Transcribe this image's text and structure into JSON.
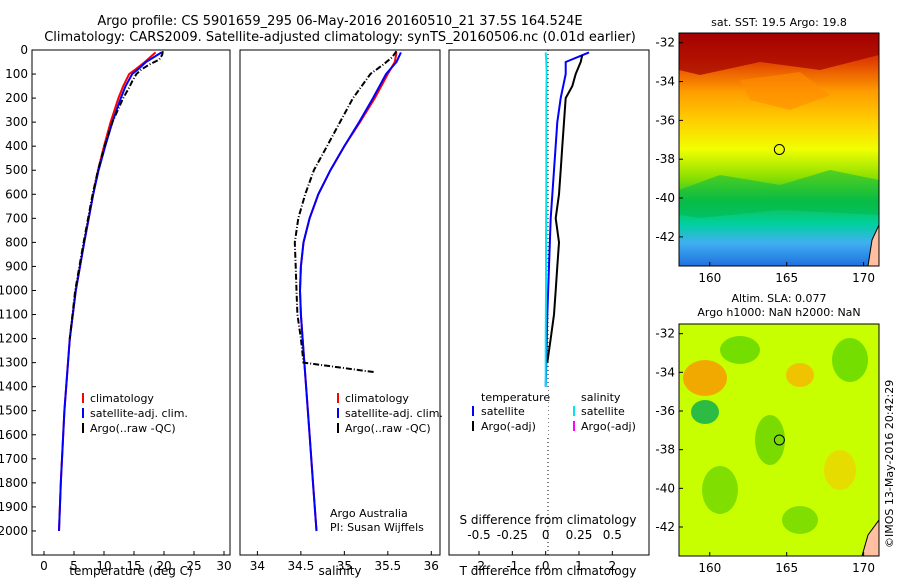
{
  "header": {
    "line1": "Argo profile: CS 5901659_295 06-May-2016 20160510_21 37.5S 164.524E",
    "line2": "Climatology: CARS2009. Satellite-adjusted climatology: synTS_20160506.nc (0.01d earlier)"
  },
  "credits": {
    "program": "Argo Australia",
    "pi": "PI: Susan Wijffels",
    "stamp": "©IMOS 13-May-2016 20:42:29"
  },
  "colors": {
    "climatology": "#ff0000",
    "satellite": "#0000ff",
    "argo": "#000000",
    "satellite_salinity": "#00e5ee",
    "argo_salinity": "#ff00ff"
  },
  "legend_profile": {
    "climatology": "climatology",
    "satellite": "satellite-adj. clim.",
    "argo": "Argo(..raw -QC)"
  },
  "legend_diff": {
    "temp_title": "temperature",
    "sal_title": "salinity",
    "temp_sat": "satellite",
    "temp_argo": "Argo(-adj)",
    "sal_sat": "satellite",
    "sal_argo": "Argo(-adj)"
  },
  "maps": {
    "sst_title": "sat. SST: 19.5 Argo: 19.8",
    "sla_title1": "Altim. SLA: 0.077",
    "sla_title2": "Argo h1000: NaN h2000: NaN",
    "y_ticks": [
      "-32",
      "-34",
      "-36",
      "-38",
      "-40",
      "-42"
    ],
    "x_ticks": [
      "160",
      "165",
      "170"
    ],
    "float_lon": 164.524,
    "float_lat": -37.5
  },
  "chart_data": [
    {
      "type": "line",
      "xlabel": "temperature (deg C)",
      "ylabel": "",
      "xlim": [
        -2,
        31
      ],
      "ylim": [
        2100,
        0
      ],
      "x_ticks": [
        0,
        5,
        10,
        15,
        20,
        25,
        30
      ],
      "y_ticks": [
        0,
        100,
        200,
        300,
        400,
        500,
        600,
        700,
        800,
        900,
        1000,
        1100,
        1200,
        1300,
        1400,
        1500,
        1600,
        1700,
        1800,
        1900,
        2000
      ],
      "series": [
        {
          "name": "climatology",
          "color": "#ff0000",
          "depth": [
            10,
            50,
            80,
            100,
            150,
            200,
            300,
            400,
            500,
            600,
            800,
            1000,
            1200,
            1500,
            1800,
            2000
          ],
          "values": [
            18.6,
            16.8,
            15.3,
            14.2,
            13.2,
            12.4,
            11.1,
            10.0,
            9.0,
            8.2,
            6.7,
            5.3,
            4.3,
            3.4,
            2.8,
            2.5
          ]
        },
        {
          "name": "satellite-adj. clim.",
          "color": "#0000ff",
          "depth": [
            10,
            50,
            80,
            100,
            150,
            200,
            300,
            400,
            500,
            600,
            800,
            1000,
            1200,
            1500,
            1800,
            2000
          ],
          "values": [
            19.6,
            17.0,
            15.7,
            14.7,
            13.6,
            12.8,
            11.4,
            10.2,
            9.1,
            8.2,
            6.7,
            5.3,
            4.3,
            3.4,
            2.8,
            2.5
          ]
        },
        {
          "name": "Argo(..raw -QC)",
          "color": "#000000",
          "depth": [
            5,
            20,
            40,
            60,
            80,
            100,
            130,
            160,
            200,
            250,
            300,
            400,
            500,
            600,
            800,
            1000,
            1200
          ],
          "values": [
            19.8,
            19.7,
            19.2,
            17.6,
            16.3,
            15.4,
            14.7,
            14.1,
            13.2,
            12.3,
            11.4,
            10.1,
            9.0,
            8.1,
            6.6,
            5.2,
            4.3
          ]
        }
      ]
    },
    {
      "type": "line",
      "xlabel": "salinity",
      "ylabel": "",
      "xlim": [
        33.8,
        36.1
      ],
      "ylim": [
        2100,
        0
      ],
      "x_ticks": [
        34,
        34.5,
        35,
        35.5,
        36
      ],
      "series": [
        {
          "name": "climatology",
          "color": "#ff0000",
          "depth": [
            10,
            50,
            100,
            200,
            300,
            400,
            500,
            600,
            700,
            800,
            900,
            1000,
            1100,
            1200,
            1400,
            1600,
            1800,
            2000
          ],
          "values": [
            35.6,
            35.58,
            35.5,
            35.35,
            35.18,
            35.0,
            34.84,
            34.7,
            34.6,
            34.53,
            34.5,
            34.49,
            34.5,
            34.52,
            34.56,
            34.6,
            34.64,
            34.68
          ]
        },
        {
          "name": "satellite-adj. clim.",
          "color": "#0000ff",
          "depth": [
            10,
            50,
            100,
            200,
            300,
            400,
            500,
            600,
            700,
            800,
            900,
            1000,
            1100,
            1200,
            1400,
            1600,
            1800,
            2000
          ],
          "values": [
            35.65,
            35.6,
            35.48,
            35.33,
            35.17,
            35.0,
            34.84,
            34.7,
            34.6,
            34.53,
            34.5,
            34.49,
            34.5,
            34.52,
            34.56,
            34.6,
            34.64,
            34.68
          ]
        },
        {
          "name": "Argo(..raw -QC)",
          "color": "#000000",
          "depth": [
            5,
            30,
            60,
            100,
            150,
            200,
            300,
            400,
            500,
            600,
            700,
            800,
            900,
            1000,
            1100,
            1200,
            1300,
            1340
          ],
          "values": [
            35.6,
            35.55,
            35.45,
            35.3,
            35.2,
            35.1,
            34.95,
            34.8,
            34.65,
            34.55,
            34.47,
            34.43,
            34.44,
            34.45,
            34.46,
            34.5,
            34.53,
            35.35
          ]
        }
      ]
    },
    {
      "type": "line",
      "xlabel": "T difference from climatology",
      "ylabel": "S difference from climatology",
      "xlim": [
        -2.9,
        3.1
      ],
      "ylim": [
        2100,
        0
      ],
      "x_ticks": [
        -2,
        -1,
        0,
        1,
        2
      ],
      "x_ticks_top": [
        -0.5,
        -0.25,
        0,
        0.25,
        0.5
      ],
      "series": [
        {
          "name": "temperature satellite",
          "color": "#0000ff",
          "depth": [
            10,
            50,
            100,
            200,
            300,
            500,
            700,
            900,
            1100,
            1300,
            1400
          ],
          "values": [
            1.3,
            0.6,
            0.6,
            0.45,
            0.35,
            0.25,
            0.15,
            0.1,
            0.05,
            0.02,
            0.0
          ]
        },
        {
          "name": "temperature Argo(-adj)",
          "color": "#000000",
          "depth": [
            20,
            50,
            100,
            150,
            200,
            300,
            400,
            500,
            600,
            700,
            800,
            900,
            1000,
            1100,
            1200,
            1300
          ],
          "values": [
            1.1,
            1.05,
            0.9,
            0.8,
            0.6,
            0.55,
            0.5,
            0.45,
            0.4,
            0.3,
            0.4,
            0.35,
            0.3,
            0.25,
            0.15,
            0.05
          ]
        },
        {
          "name": "salinity satellite",
          "color": "#00e5ee",
          "depth": [
            10,
            50,
            100,
            200,
            400,
            600,
            800,
            1000,
            1200,
            1400
          ],
          "values": [
            0.0,
            0.02,
            0.03,
            0.02,
            0.02,
            0.02,
            0.01,
            0.01,
            0.0,
            0.0
          ]
        }
      ]
    }
  ]
}
